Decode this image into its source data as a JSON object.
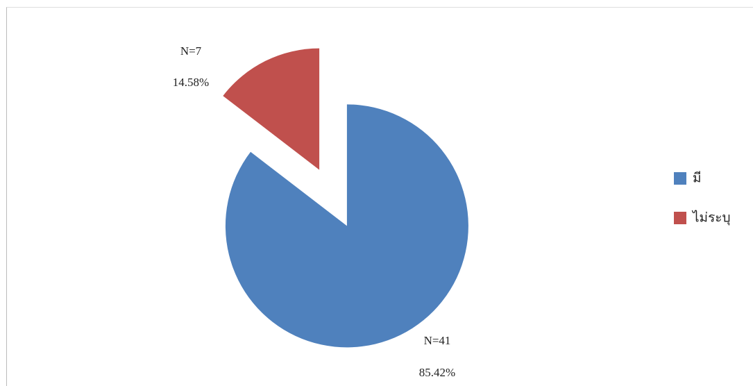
{
  "chart_data": {
    "type": "pie",
    "categories": [
      "มี",
      "ไม่ระบุ"
    ],
    "values": [
      85.42,
      14.58
    ],
    "value_labels": [
      "85.42%",
      "14.58%"
    ],
    "n_labels": [
      "N=41",
      "N=7"
    ],
    "colors": [
      "#4f81bd",
      "#c0504d"
    ],
    "exploded": true,
    "legend": "right"
  }
}
